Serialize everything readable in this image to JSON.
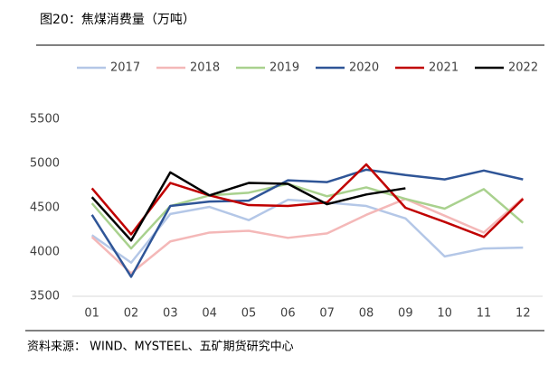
{
  "chart_data": {
    "type": "line",
    "title": "图20：焦煤消费量（万吨）",
    "source": "资料来源： WIND、MYSTEEL、五矿期货研究中心",
    "categories": [
      "01",
      "02",
      "03",
      "04",
      "05",
      "06",
      "07",
      "08",
      "09",
      "10",
      "11",
      "12"
    ],
    "series": [
      {
        "name": "2017",
        "color": "#b4c7e7",
        "values": [
          4190,
          3880,
          4430,
          4510,
          4360,
          4590,
          4560,
          4520,
          4380,
          3950,
          4040,
          4050
        ]
      },
      {
        "name": "2018",
        "color": "#f4b8b8",
        "values": [
          4170,
          3760,
          4120,
          4220,
          4240,
          4160,
          4210,
          4420,
          4600,
          4410,
          4220,
          4610
        ]
      },
      {
        "name": "2019",
        "color": "#a9d18e",
        "values": [
          4550,
          4040,
          4520,
          4640,
          4670,
          4770,
          4630,
          4730,
          4600,
          4490,
          4710,
          4330
        ]
      },
      {
        "name": "2020",
        "color": "#2f5597",
        "values": [
          4420,
          3720,
          4520,
          4570,
          4580,
          4810,
          4790,
          4930,
          4870,
          4820,
          4920,
          4820
        ]
      },
      {
        "name": "2021",
        "color": "#c00000",
        "values": [
          4720,
          4200,
          4780,
          4640,
          4530,
          4520,
          4560,
          4990,
          4500,
          4340,
          4170,
          4600
        ]
      },
      {
        "name": "2022",
        "color": "#000000",
        "values": [
          4620,
          4130,
          4900,
          4640,
          4780,
          4770,
          4540,
          4650,
          4720,
          null,
          null,
          null
        ]
      }
    ],
    "ylim": [
      3500,
      5500
    ],
    "yticks": [
      3500,
      4000,
      4500,
      5000,
      5500
    ],
    "grid": false
  }
}
